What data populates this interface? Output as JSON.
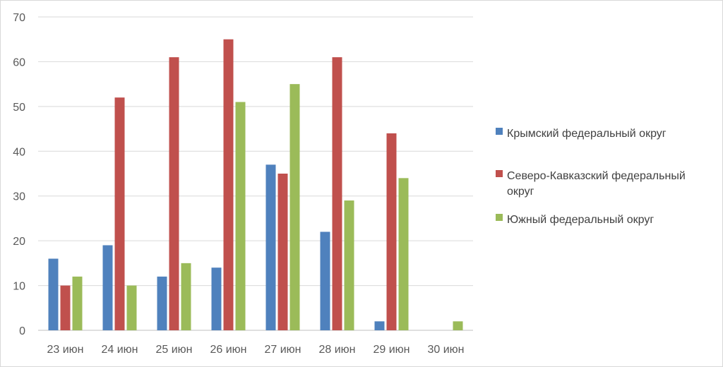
{
  "chart_data": {
    "type": "bar",
    "categories": [
      "23 июн",
      "24 июн",
      "25 июн",
      "26 июн",
      "27 июн",
      "28 июн",
      "29 июн",
      "30 июн"
    ],
    "series": [
      {
        "name": "Крымский федеральный округ",
        "color": "#4f81bd",
        "values": [
          16,
          19,
          12,
          14,
          37,
          22,
          2,
          0
        ]
      },
      {
        "name": "Северо-Кавказский федеральный округ",
        "color": "#c0504d",
        "values": [
          10,
          52,
          61,
          65,
          35,
          61,
          44,
          0
        ]
      },
      {
        "name": "Южный федеральный округ",
        "color": "#9bbb59",
        "values": [
          12,
          10,
          15,
          51,
          55,
          29,
          34,
          2
        ]
      }
    ],
    "ylim": [
      0,
      70
    ],
    "yticks": [
      0,
      10,
      20,
      30,
      40,
      50,
      60,
      70
    ],
    "grid": true,
    "legend_position": "right"
  }
}
